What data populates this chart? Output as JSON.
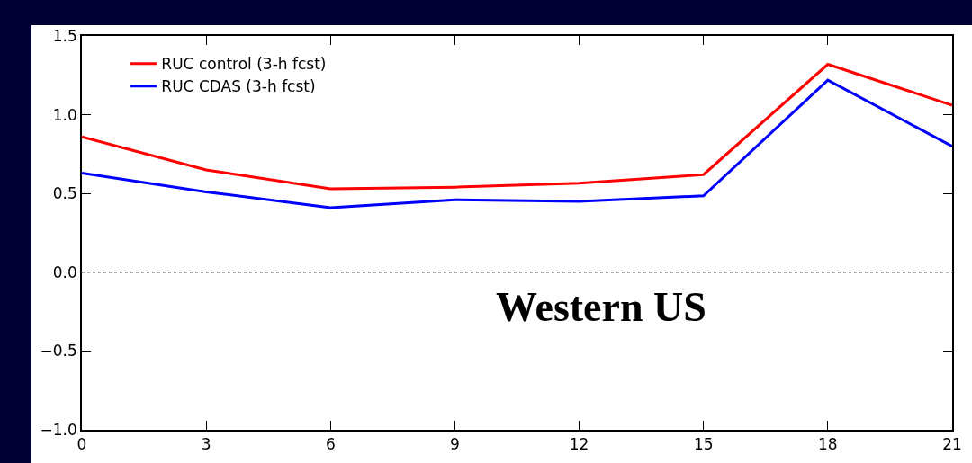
{
  "chart_data": {
    "type": "line",
    "x": [
      0,
      3,
      6,
      9,
      12,
      15,
      18,
      21
    ],
    "series": [
      {
        "name": "RUC control (3-h fcst)",
        "color": "#ff0000",
        "values": [
          0.86,
          0.65,
          0.53,
          0.54,
          0.565,
          0.62,
          1.32,
          1.06
        ]
      },
      {
        "name": "RUC CDAS (3-h fcst)",
        "color": "#0000ff",
        "values": [
          0.63,
          0.51,
          0.41,
          0.46,
          0.45,
          0.485,
          1.22,
          0.8
        ]
      }
    ],
    "xlim": [
      0,
      21
    ],
    "xticks": [
      0,
      3,
      6,
      9,
      12,
      15,
      18,
      21
    ],
    "ylim": [
      -1,
      1.5
    ],
    "yticks": [
      {
        "value": -1,
        "label": "−1.0"
      },
      {
        "value": -0.5,
        "label": "−0.5"
      },
      {
        "value": 0,
        "label": "0.0"
      },
      {
        "value": 0.5,
        "label": "0.5"
      },
      {
        "value": 1,
        "label": "1.0"
      },
      {
        "value": 1.5,
        "label": "1.5"
      }
    ],
    "ref_lines": [
      {
        "axis": "y",
        "value": 0,
        "color": "#000000",
        "line_style": "dotted"
      }
    ],
    "annotations": [
      "Western US"
    ],
    "legend": "top left",
    "grid": false,
    "marker": "none",
    "line_style": "solid"
  }
}
